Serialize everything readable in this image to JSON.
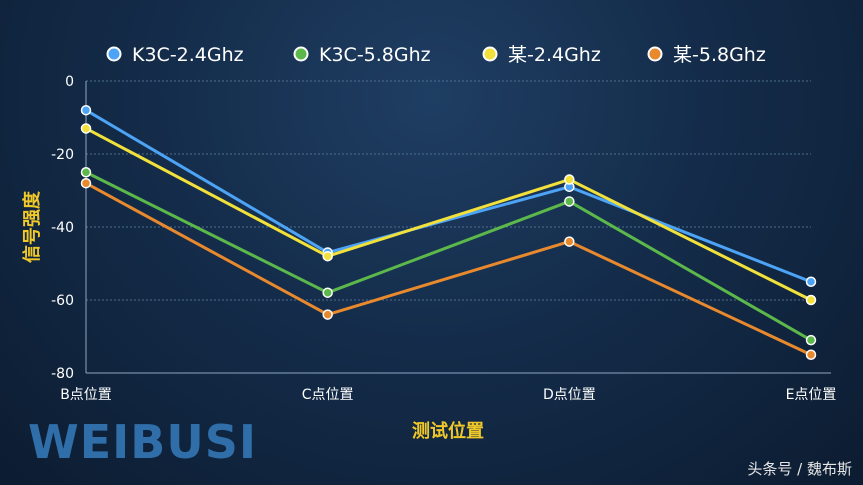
{
  "chart_data": {
    "type": "line",
    "title": "",
    "xlabel": "测试位置",
    "ylabel": "信号强度",
    "categories": [
      "B点位置",
      "C点位置",
      "D点位置",
      "E点位置"
    ],
    "ylim": [
      -80,
      0
    ],
    "yticks": [
      0,
      -20,
      -40,
      -60,
      -80
    ],
    "grid": true,
    "legend_position": "top",
    "series": [
      {
        "name": "K3C-2.4Ghz",
        "color": "#4da3f5",
        "values": [
          -8,
          -47,
          -29,
          -55
        ]
      },
      {
        "name": "K3C-5.8Ghz",
        "color": "#5cb84a",
        "values": [
          -25,
          -58,
          -33,
          -71
        ]
      },
      {
        "name": "某-2.4Ghz",
        "color": "#f2e13a",
        "values": [
          -13,
          -48,
          -27,
          -60
        ]
      },
      {
        "name": "某-5.8Ghz",
        "color": "#e8892e",
        "values": [
          -28,
          -64,
          -44,
          -75
        ]
      }
    ]
  },
  "watermark": {
    "logo": "WEIBUSI",
    "credit": "头条号 / 魏布斯"
  }
}
